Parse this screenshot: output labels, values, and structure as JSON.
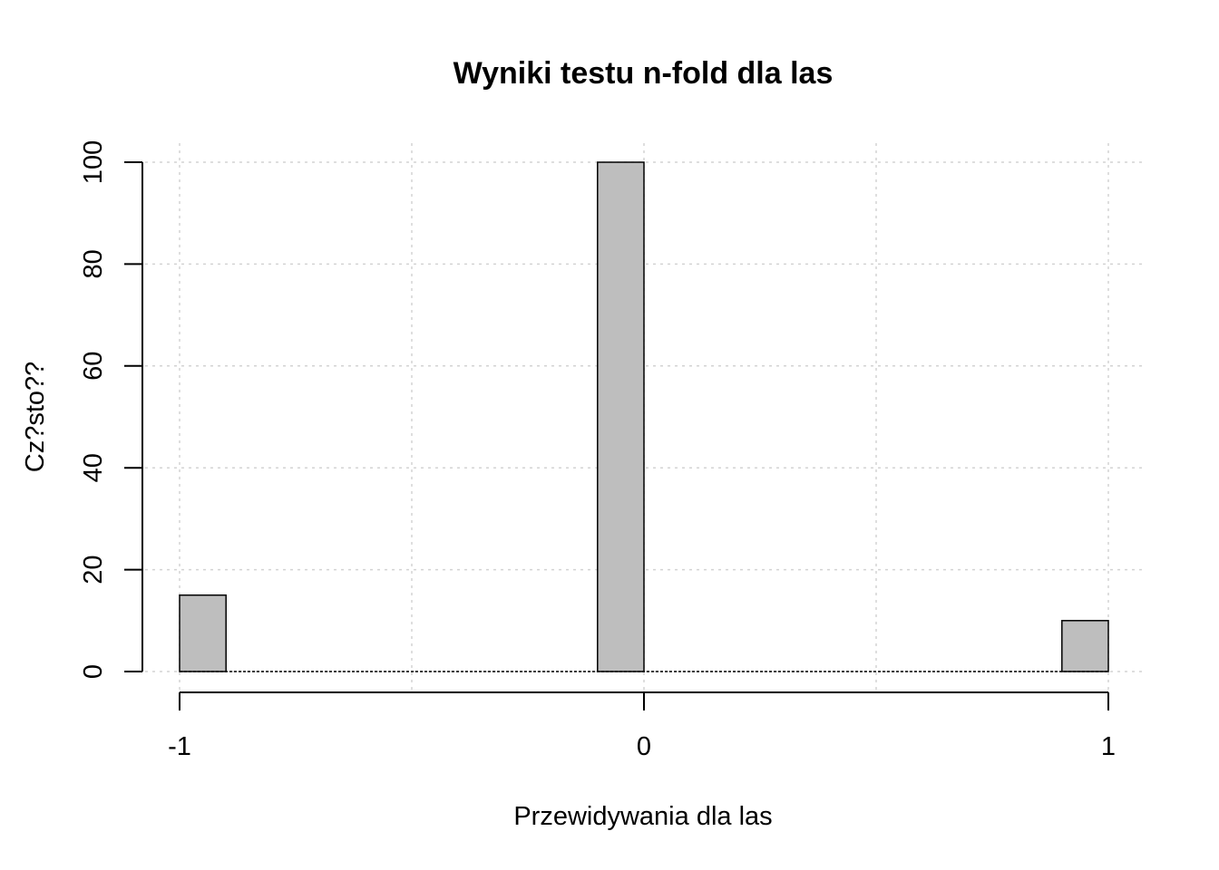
{
  "chart_data": {
    "type": "bar",
    "title": "Wyniki testu n-fold dla las",
    "xlabel": "Przewidywania dla las",
    "ylabel": "Cz?sto??",
    "x_ticks": [
      "-1",
      "0",
      "1"
    ],
    "y_ticks": [
      "0",
      "20",
      "40",
      "60",
      "80",
      "100"
    ],
    "xlim": [
      -1,
      1
    ],
    "ylim": [
      0,
      100
    ],
    "grid": true,
    "bars": [
      {
        "x0": -1.0,
        "x1": -0.9,
        "value": 15
      },
      {
        "x0": -0.1,
        "x1": 0.0,
        "value": 100
      },
      {
        "x0": 0.9,
        "x1": 1.0,
        "value": 10
      }
    ],
    "colors": {
      "bar_fill": "#bebebe",
      "bar_stroke": "#000000",
      "grid": "#d3d3d3"
    }
  }
}
